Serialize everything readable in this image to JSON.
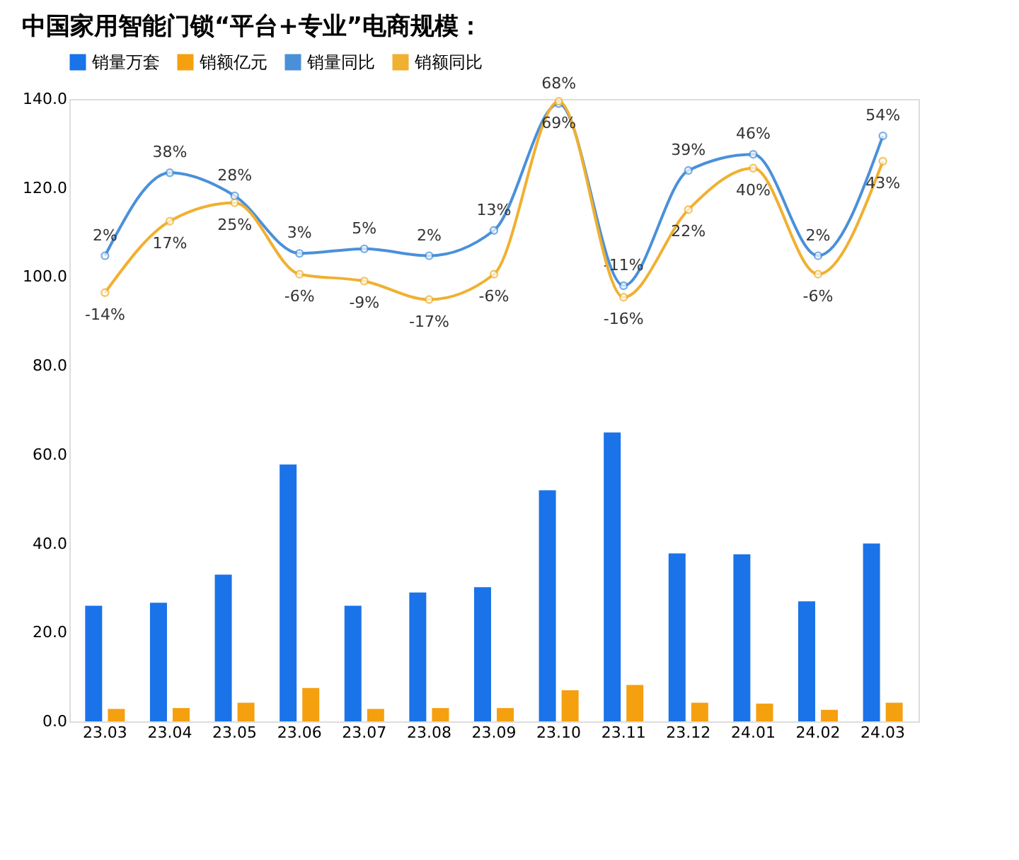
{
  "chart_data": {
    "type": "bar",
    "title": "中国家用智能门锁“平台+专业”电商规模：",
    "categories": [
      "23.03",
      "23.04",
      "23.05",
      "23.06",
      "23.07",
      "23.08",
      "23.09",
      "23.10",
      "23.11",
      "23.12",
      "24.01",
      "24.02",
      "24.03"
    ],
    "ylim": [
      0,
      140
    ],
    "yticks": [
      {
        "value": 0,
        "label": "0.0"
      },
      {
        "value": 20,
        "label": "20.0"
      },
      {
        "value": 40,
        "label": "40.0"
      },
      {
        "value": 60,
        "label": "60.0"
      },
      {
        "value": 80,
        "label": "80.0"
      },
      {
        "value": 100,
        "label": "100.0"
      },
      {
        "value": 120,
        "label": "120.0"
      },
      {
        "value": 140,
        "label": "140.0"
      }
    ],
    "y2lim": [
      -200,
      70
    ],
    "grid": false,
    "legend": "top",
    "marker": "circle",
    "line_style": "solid",
    "series": [
      {
        "name": "销量万套",
        "color": "#1a73e8",
        "values": [
          26,
          26.7,
          33,
          57.8,
          26,
          29,
          30.2,
          52,
          65,
          37.8,
          37.6,
          27,
          40
        ]
      },
      {
        "name": "销额亿元",
        "color": "#f5a00f",
        "values": [
          2.8,
          3,
          4.2,
          7.5,
          2.8,
          3,
          3,
          7,
          8.2,
          4.2,
          4,
          2.6,
          4.2
        ]
      },
      {
        "name": "销量同比",
        "type": "line",
        "axis": "y2",
        "color": "#4a90d9",
        "values": [
          2,
          38,
          28,
          3,
          5,
          2,
          13,
          68,
          -11,
          39,
          46,
          2,
          54
        ],
        "value_labels": [
          "2%",
          "38%",
          "28%",
          "3%",
          "5%",
          "2%",
          "13%",
          "68%",
          "-11%",
          "39%",
          "46%",
          "2%",
          "54%"
        ]
      },
      {
        "name": "销额同比",
        "type": "line",
        "axis": "y2",
        "color": "#f0b030",
        "values": [
          -14,
          17,
          25,
          -6,
          -9,
          -17,
          -6,
          69,
          -16,
          22,
          40,
          -6,
          43
        ],
        "value_labels": [
          "-14%",
          "17%",
          "25%",
          "-6%",
          "-9%",
          "-17%",
          "-6%",
          "69%",
          "-16%",
          "22%",
          "40%",
          "-6%",
          "43%"
        ]
      }
    ]
  }
}
